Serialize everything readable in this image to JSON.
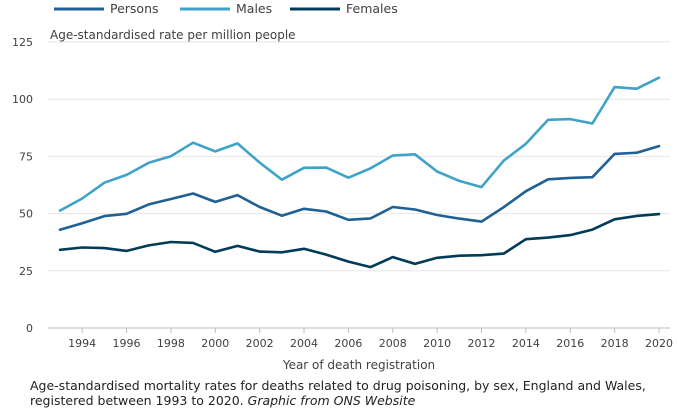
{
  "chart_data": {
    "type": "line",
    "ylabel": "Age-standardised rate per million people",
    "xlabel": "Year of death registration",
    "ylim": [
      0,
      125
    ],
    "yticks": [
      0,
      25,
      50,
      75,
      100,
      125
    ],
    "xlim": [
      1993,
      2020
    ],
    "xticks": [
      1994,
      1996,
      1998,
      2000,
      2002,
      2004,
      2006,
      2008,
      2010,
      2012,
      2014,
      2016,
      2018,
      2020
    ],
    "legend": "top",
    "grid": true,
    "x": [
      1993,
      1994,
      1995,
      1996,
      1997,
      1998,
      1999,
      2000,
      2001,
      2002,
      2003,
      2004,
      2005,
      2006,
      2007,
      2008,
      2009,
      2010,
      2011,
      2012,
      2013,
      2014,
      2015,
      2016,
      2017,
      2018,
      2019,
      2020
    ],
    "series": [
      {
        "name": "Persons",
        "color": "#206095",
        "values": [
          42.9,
          45.8,
          48.9,
          49.9,
          54.0,
          56.4,
          58.8,
          55.1,
          58.1,
          52.9,
          49.1,
          52.1,
          50.9,
          47.3,
          47.9,
          52.9,
          51.8,
          49.4,
          47.8,
          46.5,
          52.8,
          59.8,
          65.0,
          65.6,
          65.9,
          76.1,
          76.6,
          79.5
        ]
      },
      {
        "name": "Males",
        "color": "#3fa3c7",
        "values": [
          51.3,
          56.6,
          63.5,
          66.9,
          72.2,
          75.1,
          81.0,
          77.2,
          80.7,
          72.3,
          64.8,
          70.0,
          70.1,
          65.7,
          69.8,
          75.4,
          75.9,
          68.4,
          64.3,
          61.6,
          73.1,
          80.5,
          91.0,
          91.3,
          89.4,
          105.3,
          104.6,
          109.4
        ]
      },
      {
        "name": "Females",
        "color": "#003c57",
        "values": [
          34.2,
          35.2,
          34.9,
          33.7,
          36.1,
          37.6,
          37.2,
          33.3,
          35.9,
          33.4,
          33.1,
          34.6,
          32.1,
          29.0,
          26.6,
          31.0,
          28.0,
          30.7,
          31.6,
          31.8,
          32.5,
          38.8,
          39.5,
          40.6,
          43.0,
          47.5,
          49.0,
          49.8
        ]
      }
    ]
  },
  "caption": {
    "main": "Age-standardised mortality rates for deaths related to drug poisoning, by sex, England and Wales, registered between 1993 to 2020.",
    "source": "Graphic from ONS Website"
  }
}
